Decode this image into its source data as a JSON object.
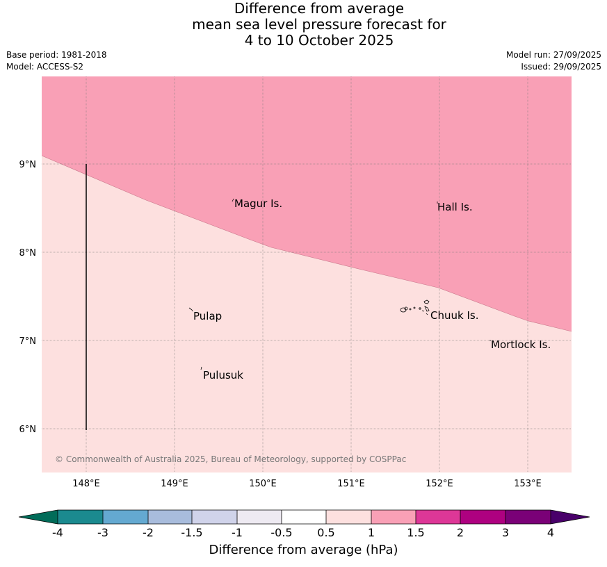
{
  "header": {
    "title_lines": [
      "Difference from average",
      "mean sea level pressure forecast for",
      "4 to 10 October 2025"
    ],
    "base_period": "Base period: 1981-2018",
    "model": "Model: ACCESS-S2",
    "model_run": "Model run: 27/09/2025",
    "issued": "Issued: 29/09/2025"
  },
  "map": {
    "lat_labels": [
      "9°N",
      "8°N",
      "7°N",
      "6°N"
    ],
    "lon_labels": [
      "148°E",
      "149°E",
      "150°E",
      "151°E",
      "152°E",
      "153°E"
    ],
    "places": [
      "Magur Is.",
      "Hall Is.",
      "Pulap",
      "Chuuk Is.",
      "Mortlock Is.",
      "Pulusuk"
    ],
    "copyright": "© Commonwealth of Australia 2025, Bureau of Meteorology, supported by COSPPac",
    "zones": [
      {
        "range": "1 to 1.5 hPa",
        "color": "#f9a0b6"
      },
      {
        "range": "0.5 to 1 hPa",
        "color": "#fde0df"
      }
    ]
  },
  "colorbar": {
    "ticks": [
      "-4",
      "-3",
      "-2",
      "-1.5",
      "-1",
      "-0.5",
      "0.5",
      "1",
      "1.5",
      "2",
      "3",
      "4"
    ],
    "colors": [
      "#1b8a8f",
      "#64a9d1",
      "#a8bcdc",
      "#d0d3ea",
      "#eeeaf2",
      "#ffffff",
      "#fde0df",
      "#f9a0b6",
      "#dd3797",
      "#ae0180",
      "#7a0177"
    ],
    "low_extend_color": "#016c59",
    "high_extend_color": "#49006a",
    "label": "Difference from average (hPa)"
  }
}
